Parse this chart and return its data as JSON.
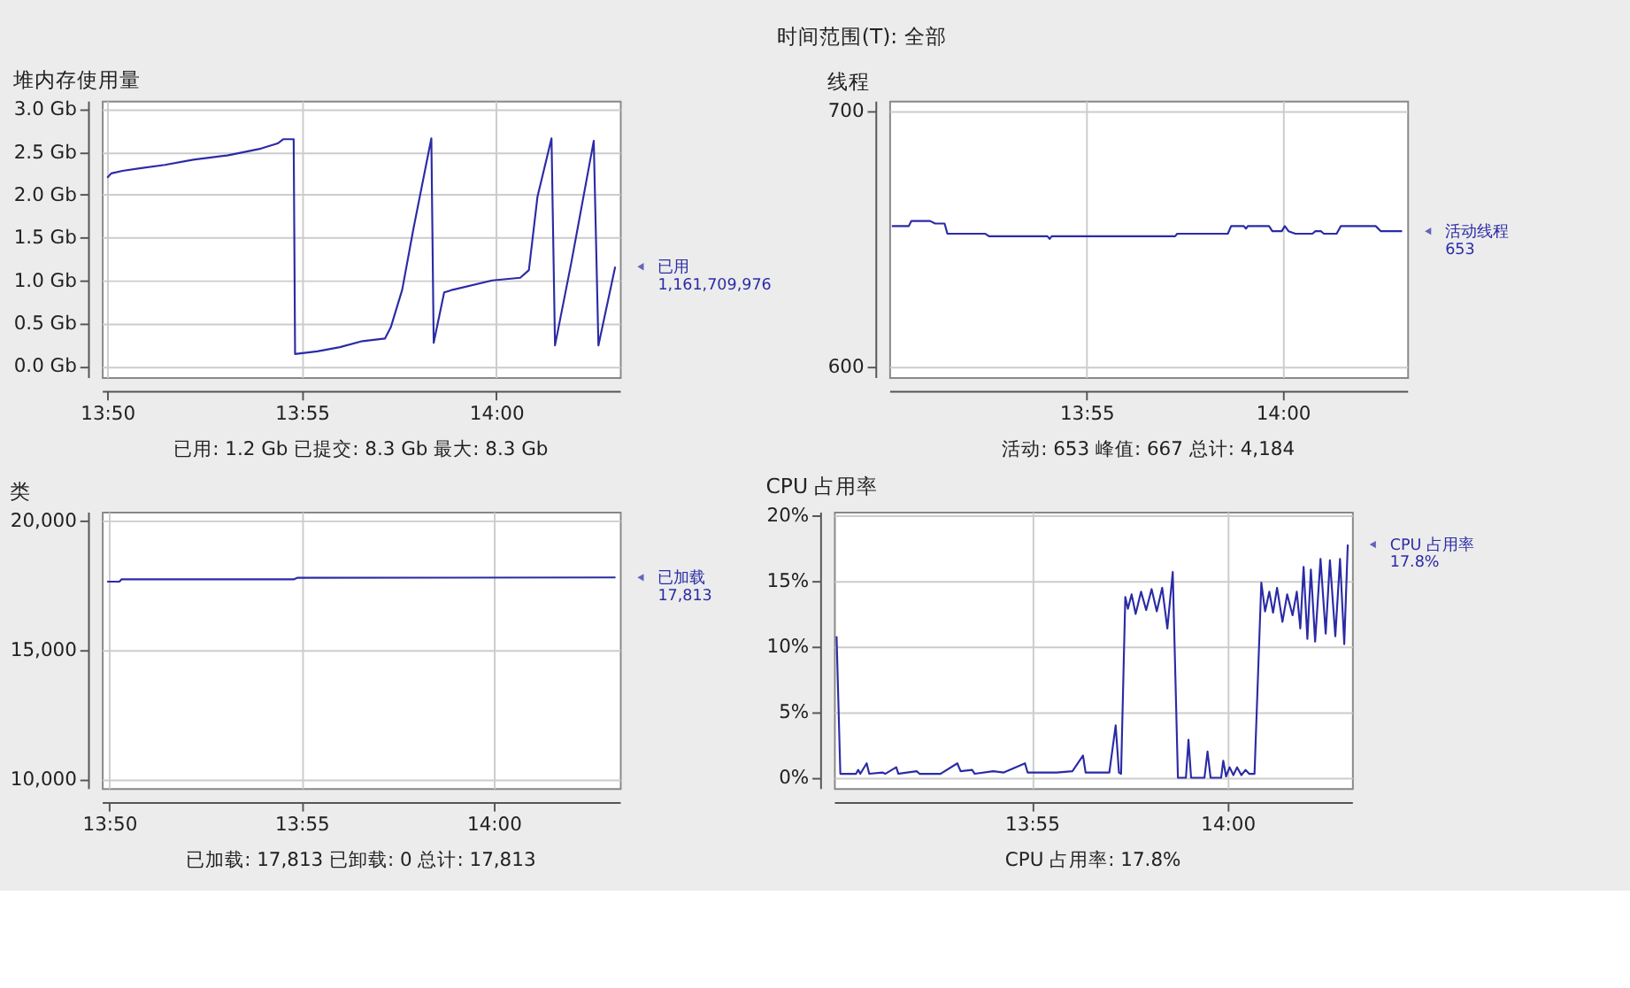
{
  "chart_data": [
    {
      "type": "other",
      "annotations": [
        "时间范围(T): 全部"
      ]
    },
    {
      "type": "line",
      "title": "堆内存使用量",
      "color": "#2b2ba6",
      "grid": true,
      "marker": "none",
      "line_style": "solid",
      "x": [
        13.8333,
        13.835,
        13.8398,
        13.8472,
        13.858,
        13.8702,
        13.8847,
        13.8992,
        13.9063,
        13.9088,
        13.9132,
        13.9138,
        13.9233,
        13.933,
        13.9427,
        13.9523,
        13.9548,
        13.9597,
        13.9645,
        13.9722,
        13.9732,
        13.9777,
        13.9813,
        13.9983,
        14.0103,
        14.014,
        14.0177,
        14.0237,
        14.0252,
        14.0322,
        14.0418,
        14.0438,
        14.051
      ],
      "values": [
        2.2,
        2.25,
        2.28,
        2.31,
        2.35,
        2.41,
        2.46,
        2.54,
        2.6,
        2.65,
        2.65,
        0.14,
        0.17,
        0.22,
        0.29,
        0.32,
        0.45,
        0.89,
        1.6,
        2.66,
        0.27,
        0.86,
        0.89,
        1.0,
        1.03,
        1.12,
        1.98,
        2.66,
        0.24,
        1.21,
        2.63,
        0.24,
        1.16
      ],
      "xlim": [
        13.831,
        14.053
      ],
      "xticks": [
        {
          "value": 13.8333,
          "label": "13:50"
        },
        {
          "value": 13.9167,
          "label": "13:55"
        },
        {
          "value": 14.0,
          "label": "14:00"
        }
      ],
      "ylim": [
        -0.13,
        3.1
      ],
      "yticks": [
        {
          "value": 0,
          "label": "0.0 Gb"
        },
        {
          "value": 0.5,
          "label": "0.5 Gb"
        },
        {
          "value": 1,
          "label": "1.0 Gb"
        },
        {
          "value": 1.5,
          "label": "1.5 Gb"
        },
        {
          "value": 2,
          "label": "2.0 Gb"
        },
        {
          "value": 2.5,
          "label": "2.5 Gb"
        },
        {
          "value": 3,
          "label": "3.0 Gb"
        }
      ],
      "annotations": [
        "已用\n1,161,709,976",
        "已用: 1.2 Gb    已提交: 8.3 Gb    最大: 8.3 Gb"
      ]
    },
    {
      "type": "line",
      "title": "线程",
      "color": "#2b2ba6",
      "grid": true,
      "marker": "none",
      "line_style": "solid",
      "x": [
        13.834,
        13.8412,
        13.8423,
        13.8502,
        13.8524,
        13.8564,
        13.8576,
        13.8737,
        13.8753,
        13.9001,
        13.901,
        13.9019,
        13.9543,
        13.9552,
        13.9767,
        13.9781,
        13.9835,
        13.9844,
        13.9852,
        13.9942,
        13.9956,
        13.9996,
        14.0009,
        14.0025,
        14.0054,
        14.0126,
        14.0139,
        14.0162,
        14.0175,
        14.0229,
        14.0247,
        14.0395,
        14.0417,
        14.0484,
        14.0507
      ],
      "values": [
        655,
        655,
        657,
        657,
        656,
        656,
        652,
        652,
        651,
        651,
        650,
        651,
        651,
        652,
        652,
        655,
        655,
        654,
        655,
        655,
        653,
        653,
        655,
        653,
        652,
        652,
        653,
        653,
        652,
        652,
        655,
        655,
        653,
        653,
        653
      ],
      "xlim": [
        13.8329,
        14.0529
      ],
      "xticks": [
        {
          "value": 13.9167,
          "label": "13:55"
        },
        {
          "value": 14.0,
          "label": "14:00"
        }
      ],
      "ylim": [
        596,
        704
      ],
      "yticks": [
        600,
        700
      ],
      "annotations": [
        "活动线程\n653",
        "活动: 653    峰值: 667    总计: 4,184"
      ]
    },
    {
      "type": "line",
      "title": "类",
      "color": "#2b2ba6",
      "grid": true,
      "marker": "none",
      "line_style": "solid",
      "x": [
        13.8324,
        13.8377,
        13.8386,
        13.9132,
        13.9148,
        14.0528
      ],
      "values": [
        17650,
        17650,
        17740,
        17740,
        17800,
        17813
      ],
      "xlim": [
        13.8301,
        14.0547
      ],
      "xticks": [
        {
          "value": 13.8333,
          "label": "13:50"
        },
        {
          "value": 13.9167,
          "label": "13:55"
        },
        {
          "value": 14.0,
          "label": "14:00"
        }
      ],
      "ylim": [
        9640,
        20360
      ],
      "yticks": [
        {
          "value": 10000,
          "label": "10,000"
        },
        {
          "value": 15000,
          "label": "15,000"
        },
        {
          "value": 20000,
          "label": "20,000"
        }
      ],
      "annotations": [
        "已加载\n17,813",
        "已加载: 17,813    已卸载: 0    总计: 17,813"
      ]
    },
    {
      "type": "line",
      "title": "CPU 占用率",
      "color": "#2b2ba6",
      "grid": true,
      "marker": "none",
      "line_style": "solid",
      "x": [
        13.8336,
        13.8352,
        13.8419,
        13.8428,
        13.8437,
        13.8464,
        13.8475,
        13.8531,
        13.8543,
        13.859,
        13.8599,
        13.8677,
        13.8689,
        13.8778,
        13.885,
        13.8864,
        13.8913,
        13.8924,
        13.9003,
        13.9048,
        13.9138,
        13.9149,
        13.9273,
        13.934,
        13.9385,
        13.9396,
        13.9497,
        13.9524,
        13.9538,
        13.9547,
        13.9565,
        13.9576,
        13.9592,
        13.9609,
        13.9632,
        13.9654,
        13.9677,
        13.9699,
        13.9722,
        13.9744,
        13.9767,
        13.9789,
        13.9823,
        13.9834,
        13.9845,
        13.9902,
        13.9915,
        13.9928,
        13.9973,
        13.9982,
        13.9994,
        14.0009,
        14.0025,
        14.0041,
        14.0059,
        14.0077,
        14.0092,
        14.0115,
        14.0144,
        14.016,
        14.0178,
        14.0194,
        14.0211,
        14.0234,
        14.0254,
        14.0277,
        14.0295,
        14.031,
        14.0324,
        14.034,
        14.0355,
        14.0373,
        14.0396,
        14.0418,
        14.0436,
        14.0459,
        14.0479,
        14.0497,
        14.0512
      ],
      "values": [
        10.8,
        0.3,
        0.3,
        0.6,
        0.3,
        1.1,
        0.3,
        0.4,
        0.3,
        0.8,
        0.3,
        0.5,
        0.3,
        0.3,
        1.1,
        0.5,
        0.6,
        0.3,
        0.5,
        0.4,
        1.1,
        0.4,
        0.4,
        0.5,
        1.7,
        0.4,
        0.4,
        4.0,
        0.4,
        0.3,
        13.8,
        12.9,
        14.0,
        12.5,
        14.2,
        12.8,
        14.4,
        12.7,
        14.5,
        11.4,
        15.7,
        0,
        0,
        2.9,
        0,
        0,
        2.0,
        0,
        0,
        1.3,
        0.1,
        0.8,
        0.2,
        0.8,
        0.2,
        0.6,
        0.3,
        0.3,
        14.9,
        12.7,
        14.2,
        12.6,
        14.5,
        11.9,
        14.0,
        12.4,
        14.2,
        11.4,
        16.1,
        10.6,
        15.9,
        10.4,
        16.7,
        11.0,
        16.6,
        10.8,
        16.7,
        10.2,
        17.8
      ],
      "xlim": [
        13.8325,
        14.053
      ],
      "xticks": [
        {
          "value": 13.9167,
          "label": "13:55"
        },
        {
          "value": 14.0,
          "label": "14:00"
        }
      ],
      "ylim": [
        -0.8,
        20.3
      ],
      "yticks": [
        {
          "value": 0,
          "label": "0%"
        },
        {
          "value": 5,
          "label": "5%"
        },
        {
          "value": 10,
          "label": "10%"
        },
        {
          "value": 15,
          "label": "15%"
        },
        {
          "value": 20,
          "label": "20%"
        }
      ],
      "annotations": [
        "CPU 占用率\n17.8%",
        "CPU 占用率: 17.8%"
      ]
    }
  ]
}
